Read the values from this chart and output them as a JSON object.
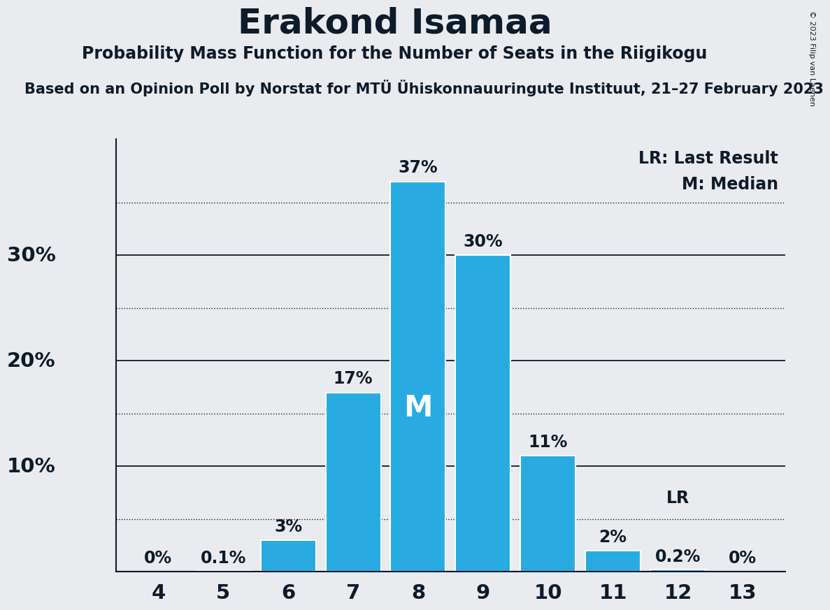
{
  "title": "Erakond Isamaa",
  "subtitle": "Probability Mass Function for the Number of Seats in the Riigikogu",
  "sub_subtitle": "Based on an Opinion Poll by Norstat for MTÜ Ühiskonnauuringute Instituut, 21–27 February 2023",
  "copyright": "© 2023 Filip van Laenen",
  "seats": [
    4,
    5,
    6,
    7,
    8,
    9,
    10,
    11,
    12,
    13
  ],
  "probabilities": [
    0.0,
    0.1,
    3.0,
    17.0,
    37.0,
    30.0,
    11.0,
    2.0,
    0.2,
    0.0
  ],
  "bar_color": "#29ABE2",
  "bar_edge_color": "#ffffff",
  "background_color": "#EAEBEE",
  "text_color": "#0D1B2A",
  "median_seat": 8,
  "median_label": "M",
  "lr_seat": 12,
  "lr_label": "LR",
  "yticks_solid": [
    10,
    20,
    30
  ],
  "yticks_dotted": [
    5,
    15,
    25,
    35
  ],
  "ylim": [
    0,
    41
  ],
  "legend_lr": "LR: Last Result",
  "legend_m": "M: Median",
  "label_fontsize": 17,
  "tick_fontsize": 21,
  "title_fontsize": 36,
  "subtitle_fontsize": 17,
  "sub_subtitle_fontsize": 15
}
